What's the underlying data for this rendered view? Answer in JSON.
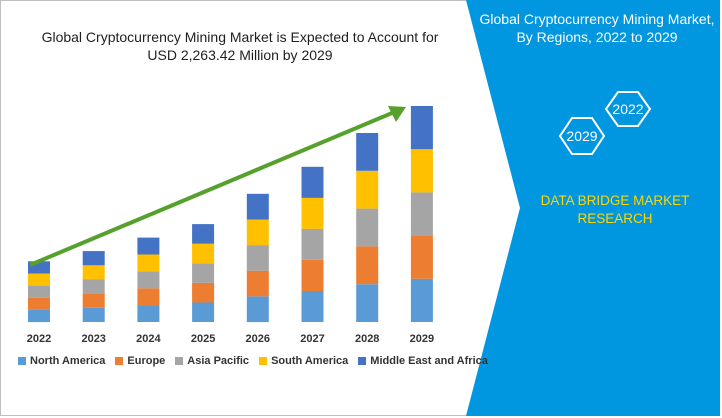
{
  "left_title": {
    "line1": "Global Cryptocurrency Mining Market is Expected to Account for",
    "line2": "USD 2,263.42 Million by 2029"
  },
  "right_panel": {
    "title_line1": "Global Cryptocurrency Mining Market,",
    "title_line2": "By Regions, 2022 to 2029",
    "hex_top": "2022",
    "hex_bottom": "2029",
    "brand_line1": "DATA BRIDGE MARKET",
    "brand_line2": "RESEARCH",
    "bg_color": "#0096e0"
  },
  "chart_data": {
    "type": "bar",
    "stacked": true,
    "categories": [
      "2022",
      "2023",
      "2024",
      "2025",
      "2026",
      "2027",
      "2028",
      "2029"
    ],
    "series": [
      {
        "name": "North America",
        "color": "#5b9bd5",
        "values": [
          9,
          10.5,
          12.5,
          14.5,
          19,
          23,
          28,
          32
        ]
      },
      {
        "name": "Europe",
        "color": "#ed7d31",
        "values": [
          9,
          10.5,
          12.5,
          14.5,
          19,
          23,
          28,
          32
        ]
      },
      {
        "name": "Asia Pacific",
        "color": "#a5a5a5",
        "values": [
          9,
          10.5,
          12.5,
          14.5,
          19,
          23,
          28,
          32
        ]
      },
      {
        "name": "South America",
        "color": "#ffc000",
        "values": [
          9,
          10.5,
          12.5,
          14.5,
          19,
          23,
          28,
          32
        ]
      },
      {
        "name": "Middle East and Africa",
        "color": "#4472c4",
        "values": [
          9,
          10.5,
          12.5,
          14.5,
          19,
          23,
          28,
          32
        ]
      }
    ],
    "trend_arrow_color": "#56a02c",
    "grid": false,
    "legend_position": "bottom",
    "ylim": [
      0,
      160
    ]
  }
}
